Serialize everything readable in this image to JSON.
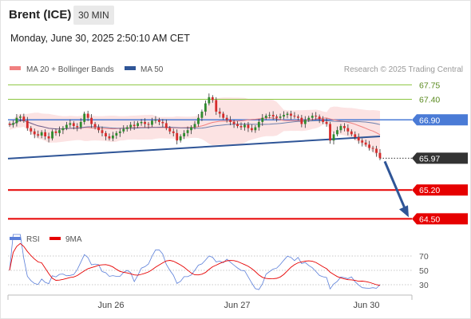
{
  "header": {
    "instrument": "Brent (ICE)",
    "timeframe": "30 MIN"
  },
  "datetime": "Monday, June 30, 2025 2:50:10 AM CET",
  "copyright": "Research © 2025 Trading Central",
  "colors": {
    "ma20": "#f08080",
    "ma50": "#2f5597",
    "bb_fill": "#fbdada",
    "resistance": "#8cc63f",
    "pivot": "#4a7bd6",
    "support": "#e60000",
    "price_tag": "#333333",
    "arrow": "#2f5597",
    "rsi": "#5b7fd9",
    "rsi_ma": "#e60000"
  },
  "legend": [
    {
      "name": "MA 20 + Bollinger Bands",
      "color": "#f08080"
    },
    {
      "name": "MA 50",
      "color": "#2f5597"
    }
  ],
  "price_labels": [
    "67.75",
    "67.40",
    "66.90",
    "65.97",
    "65.20",
    "64.50"
  ],
  "rsi_legend": [
    {
      "name": "RSI",
      "color": "#5b7fd9"
    },
    {
      "name": "9MA",
      "color": "#e60000"
    }
  ],
  "rsi_ticks": [
    "70",
    "50",
    "30"
  ],
  "x_ticks": [
    "Jun 26",
    "Jun 27",
    "Jun 30"
  ],
  "chart_data": {
    "type": "candlestick",
    "price_range": [
      64.45,
      67.95
    ],
    "levels": [
      {
        "value": 67.75,
        "kind": "resistance"
      },
      {
        "value": 67.4,
        "kind": "resistance"
      },
      {
        "value": 66.9,
        "kind": "pivot"
      },
      {
        "value": 65.97,
        "kind": "last_price"
      },
      {
        "value": 65.2,
        "kind": "support"
      },
      {
        "value": 64.5,
        "kind": "support"
      }
    ],
    "trendline": {
      "start": 65.96,
      "end": 66.5
    },
    "projection": {
      "from": 65.97,
      "to": 64.5
    },
    "closes": [
      66.78,
      66.82,
      66.95,
      66.98,
      66.88,
      66.7,
      66.62,
      66.55,
      66.52,
      66.6,
      66.5,
      66.45,
      66.62,
      66.58,
      66.65,
      66.7,
      66.78,
      66.82,
      66.75,
      66.72,
      66.85,
      67.05,
      66.95,
      66.8,
      66.72,
      66.65,
      66.58,
      66.5,
      66.45,
      66.52,
      66.58,
      66.62,
      66.68,
      66.72,
      66.78,
      66.75,
      66.82,
      66.85,
      66.8,
      66.78,
      66.88,
      66.9,
      66.85,
      66.82,
      66.7,
      66.62,
      66.58,
      66.4,
      66.5,
      66.58,
      66.65,
      66.72,
      66.8,
      66.95,
      67.1,
      67.3,
      67.45,
      67.38,
      67.1,
      67.05,
      66.95,
      66.9,
      66.85,
      66.8,
      66.75,
      66.72,
      66.78,
      66.7,
      66.65,
      66.72,
      66.85,
      66.95,
      67.0,
      67.02,
      66.98,
      66.95,
      66.98,
      67.02,
      67.05,
      67.0,
      66.98,
      66.95,
      66.8,
      66.9,
      66.95,
      67.0,
      66.98,
      66.92,
      66.85,
      66.8,
      66.4,
      66.55,
      66.65,
      66.75,
      66.7,
      66.62,
      66.55,
      66.48,
      66.4,
      66.35,
      66.3,
      66.22,
      66.2,
      66.1,
      65.97
    ],
    "rsi": {
      "range": [
        20,
        80
      ],
      "levels": [
        70,
        50,
        30
      ],
      "last": 30
    }
  }
}
